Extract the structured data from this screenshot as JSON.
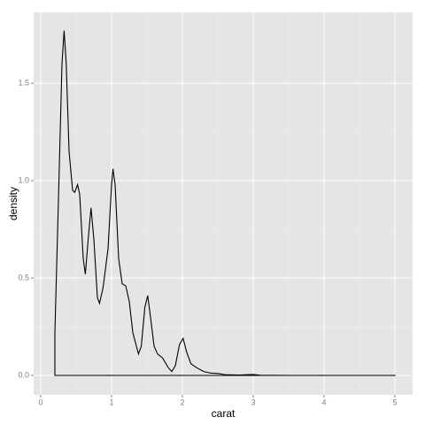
{
  "chart_data": {
    "type": "density",
    "x_label": "carat",
    "y_label": "density",
    "x": [
      0.2,
      0.2,
      0.25,
      0.3,
      0.33,
      0.36,
      0.4,
      0.45,
      0.48,
      0.52,
      0.55,
      0.6,
      0.63,
      0.67,
      0.71,
      0.75,
      0.8,
      0.83,
      0.88,
      0.95,
      1.0,
      1.02,
      1.05,
      1.1,
      1.15,
      1.2,
      1.25,
      1.3,
      1.38,
      1.42,
      1.47,
      1.51,
      1.55,
      1.6,
      1.65,
      1.72,
      1.8,
      1.85,
      1.9,
      1.96,
      2.01,
      2.06,
      2.12,
      2.2,
      2.3,
      2.4,
      2.5,
      2.6,
      2.8,
      3.0,
      3.1,
      3.5,
      4.0,
      5.01
    ],
    "values": [
      0,
      0.22,
      0.9,
      1.6,
      1.77,
      1.6,
      1.15,
      0.95,
      0.94,
      0.98,
      0.93,
      0.6,
      0.52,
      0.7,
      0.86,
      0.7,
      0.4,
      0.37,
      0.45,
      0.65,
      0.98,
      1.06,
      0.98,
      0.6,
      0.47,
      0.46,
      0.38,
      0.22,
      0.11,
      0.15,
      0.35,
      0.41,
      0.3,
      0.15,
      0.11,
      0.09,
      0.04,
      0.02,
      0.05,
      0.16,
      0.19,
      0.12,
      0.06,
      0.04,
      0.02,
      0.012,
      0.01,
      0.004,
      0.002,
      0.005,
      0.001,
      0,
      0,
      0
    ],
    "color": "#000000",
    "xlim": [
      -0.1,
      5.25
    ],
    "ylim": [
      -0.1,
      1.864
    ],
    "xticks": [
      0,
      1,
      2,
      3,
      4,
      5
    ],
    "yticks": [
      {
        "value": 0,
        "label": "0.0"
      },
      0.5,
      {
        "value": 1,
        "label": "1.0"
      },
      1.5
    ],
    "grid": true,
    "minor_grid": true
  }
}
